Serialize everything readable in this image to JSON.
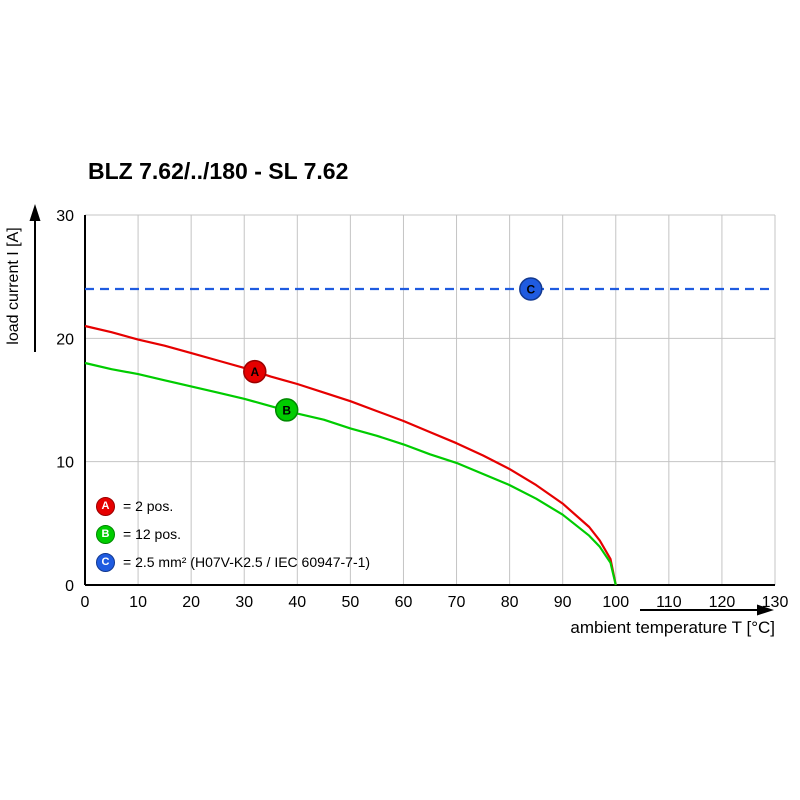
{
  "chart_data": {
    "type": "line",
    "title": "BLZ 7.62/../180 - SL 7.62",
    "xlabel": "ambient temperature T [°C]",
    "ylabel": "load current I [A]",
    "xlim": [
      0,
      130
    ],
    "ylim": [
      0,
      30
    ],
    "xticks": [
      0,
      10,
      20,
      30,
      40,
      50,
      60,
      70,
      80,
      90,
      100,
      110,
      120,
      130
    ],
    "yticks": [
      0,
      10,
      20,
      30
    ],
    "grid": true,
    "grid_color": "#c4c4c4",
    "axis_color": "#000000",
    "legend_position": "lower-left-inside",
    "series": [
      {
        "name": "A",
        "label": "= 2 pos.",
        "color": "#e60000",
        "edge": "#9b0000",
        "style": "solid",
        "x": [
          0,
          5,
          10,
          15,
          20,
          25,
          30,
          35,
          40,
          45,
          50,
          55,
          60,
          65,
          70,
          75,
          80,
          85,
          90,
          95,
          97,
          99,
          100
        ],
        "y": [
          21.0,
          20.5,
          19.9,
          19.4,
          18.8,
          18.2,
          17.6,
          16.9,
          16.3,
          15.6,
          14.9,
          14.1,
          13.3,
          12.4,
          11.5,
          10.5,
          9.4,
          8.1,
          6.6,
          4.7,
          3.6,
          2.1,
          0
        ],
        "marker": {
          "x": 32,
          "y": 17.3,
          "label": "A"
        }
      },
      {
        "name": "B",
        "label": "= 12 pos.",
        "color": "#00cc00",
        "edge": "#008800",
        "style": "solid",
        "x": [
          0,
          5,
          10,
          15,
          20,
          25,
          30,
          35,
          40,
          45,
          50,
          55,
          60,
          65,
          70,
          75,
          80,
          85,
          90,
          95,
          97,
          99,
          100
        ],
        "y": [
          18.0,
          17.5,
          17.1,
          16.6,
          16.1,
          15.6,
          15.1,
          14.5,
          13.9,
          13.4,
          12.7,
          12.1,
          11.4,
          10.6,
          9.9,
          9.0,
          8.1,
          7.0,
          5.7,
          4.0,
          3.1,
          1.8,
          0
        ],
        "marker": {
          "x": 38,
          "y": 14.2,
          "label": "B"
        }
      },
      {
        "name": "C",
        "label": "= 2.5 mm² (H07V-K2.5 / IEC 60947-7-1)",
        "color": "#1f5be0",
        "edge": "#12388f",
        "style": "dashed",
        "x": [
          0,
          130
        ],
        "y": [
          24,
          24
        ],
        "marker": {
          "x": 84,
          "y": 24,
          "label": "C"
        }
      }
    ]
  }
}
